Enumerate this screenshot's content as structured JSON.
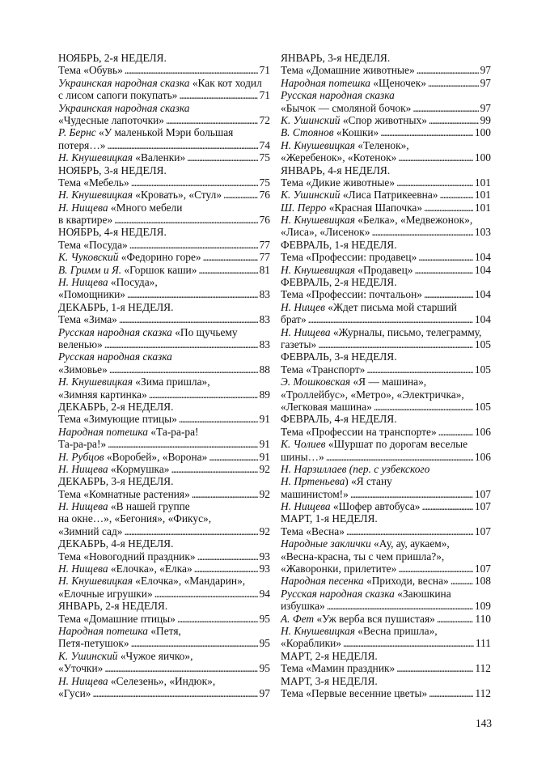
{
  "columns": [
    [
      {
        "h": "НОЯБРЬ, 2-я НЕДЕЛЯ."
      },
      {
        "lines": [
          {
            "t": "Тема «Обувь»"
          }
        ],
        "p": "71"
      },
      {
        "lines": [
          {
            "i": "Украинская народная сказка",
            "t": " «Как кот ходил"
          },
          {
            "t": "с лисом сапоги покупать»"
          }
        ],
        "p": "71"
      },
      {
        "lines": [
          {
            "i": "Украинская народная сказка"
          },
          {
            "t": "«Чудесные лапоточки»"
          }
        ],
        "p": "72"
      },
      {
        "lines": [
          {
            "i": "Р. Бернс",
            "t": " «У маленькой Мэри большая"
          },
          {
            "t": "потеря…»"
          }
        ],
        "p": "74"
      },
      {
        "lines": [
          {
            "i": "Н. Кнушевицкая",
            "t": " «Валенки»"
          }
        ],
        "p": "75"
      },
      {
        "h": "НОЯБРЬ, 3-я НЕДЕЛЯ."
      },
      {
        "lines": [
          {
            "t": "Тема «Мебель»"
          }
        ],
        "p": "75"
      },
      {
        "lines": [
          {
            "i": "Н. Кнушевицкая",
            "t": " «Кровать», «Стул»"
          }
        ],
        "p": "76"
      },
      {
        "lines": [
          {
            "i": "Н. Нищева",
            "t": " «Много мебели"
          },
          {
            "t": "в квартире»"
          }
        ],
        "p": "76"
      },
      {
        "h": "НОЯБРЬ, 4-я НЕДЕЛЯ."
      },
      {
        "lines": [
          {
            "t": "Тема «Посуда»"
          }
        ],
        "p": "77"
      },
      {
        "lines": [
          {
            "i": "К. Чуковский",
            "t": " «Федорино горе»"
          }
        ],
        "p": "77"
      },
      {
        "lines": [
          {
            "i": "В. Гримм и Я.",
            "t": " «Горшок каши»"
          }
        ],
        "p": "81"
      },
      {
        "lines": [
          {
            "i": "Н. Нищева",
            "t": " «Посуда»,"
          },
          {
            "t": "«Помощники»"
          }
        ],
        "p": "83"
      },
      {
        "h": "ДЕКАБРЬ, 1-я НЕДЕЛЯ."
      },
      {
        "lines": [
          {
            "t": "Тема «Зима»"
          }
        ],
        "p": "83"
      },
      {
        "lines": [
          {
            "i": "Русская народная сказка",
            "t": " «По щучьему"
          },
          {
            "t": "веленью»"
          }
        ],
        "p": "83"
      },
      {
        "lines": [
          {
            "i": "Русская народная сказка"
          },
          {
            "t": "«Зимовье»"
          }
        ],
        "p": "88"
      },
      {
        "lines": [
          {
            "i": "Н. Кнушевицкая",
            "t": " «Зима пришла»,"
          },
          {
            "t": "«Зимняя картинка»"
          }
        ],
        "p": "89"
      },
      {
        "h": "ДЕКАБРЬ, 2-я НЕДЕЛЯ."
      },
      {
        "lines": [
          {
            "t": "Тема «Зимующие птицы»"
          }
        ],
        "p": "91"
      },
      {
        "lines": [
          {
            "i": "Народная потешка",
            "t": " «Та-ра-ра!"
          },
          {
            "t": "Та-ра-ра!»"
          }
        ],
        "p": "91"
      },
      {
        "lines": [
          {
            "i": "Н. Рубцов",
            "t": " «Воробей», «Ворона»"
          }
        ],
        "p": "91"
      },
      {
        "lines": [
          {
            "i": "Н. Нищева",
            "t": " «Кормушка»"
          }
        ],
        "p": "92"
      },
      {
        "h": "ДЕКАБРЬ, 3-я НЕДЕЛЯ."
      },
      {
        "lines": [
          {
            "t": "Тема «Комнатные растения»"
          }
        ],
        "p": "92"
      },
      {
        "lines": [
          {
            "i": "Н. Нищева",
            "t": " «В нашей группе"
          },
          {
            "t": "на окне…», «Бегония», «Фикус»,"
          },
          {
            "t": "«Зимний сад»"
          }
        ],
        "p": "92"
      },
      {
        "h": "ДЕКАБРЬ, 4-я НЕДЕЛЯ."
      },
      {
        "lines": [
          {
            "t": "Тема «Новогодний праздник»"
          }
        ],
        "p": "93"
      },
      {
        "lines": [
          {
            "i": "Н. Нищева",
            "t": " «Елочка», «Елка»"
          }
        ],
        "p": "93"
      },
      {
        "lines": [
          {
            "i": "Н. Кнушевицкая",
            "t": " «Елочка», «Мандарин»,"
          },
          {
            "t": "«Елочные игрушки»"
          }
        ],
        "p": "94"
      },
      {
        "h": "ЯНВАРЬ, 2-я НЕДЕЛЯ."
      },
      {
        "lines": [
          {
            "t": "Тема «Домашние птицы»"
          }
        ],
        "p": "95"
      },
      {
        "lines": [
          {
            "i": "Народная потешка",
            "t": " «Петя,"
          },
          {
            "t": "Петя-петушок»"
          }
        ],
        "p": "95"
      },
      {
        "lines": [
          {
            "i": "К. Ушинский",
            "t": " «Чужое яичко»,"
          },
          {
            "t": "«Уточки»"
          }
        ],
        "p": "95"
      },
      {
        "lines": [
          {
            "i": "Н. Нищева",
            "t": " «Селезень», «Индюк»,"
          },
          {
            "t": "«Гуси»"
          }
        ],
        "p": "97"
      }
    ],
    [
      {
        "h": "ЯНВАРЬ, 3-я НЕДЕЛЯ."
      },
      {
        "lines": [
          {
            "t": "Тема «Домашние животные»"
          }
        ],
        "p": "97"
      },
      {
        "lines": [
          {
            "i": "Народная потешка",
            "t": " «Щеночек»"
          }
        ],
        "p": "97"
      },
      {
        "lines": [
          {
            "i": "Русская народная сказка"
          },
          {
            "t": "«Бычок — смоляной бочок»"
          }
        ],
        "p": "97"
      },
      {
        "lines": [
          {
            "i": "К. Ушинский",
            "t": " «Спор животных»"
          }
        ],
        "p": "99"
      },
      {
        "lines": [
          {
            "i": "В. Стоянов",
            "t": " «Кошки»"
          }
        ],
        "p": "100"
      },
      {
        "lines": [
          {
            "i": "Н. Кнушевицкая",
            "t": " «Теленок»,"
          },
          {
            "t": "«Жеребенок», «Котенок»"
          }
        ],
        "p": "100"
      },
      {
        "h": "ЯНВАРЬ, 4-я НЕДЕЛЯ."
      },
      {
        "lines": [
          {
            "t": "Тема «Дикие животные»"
          }
        ],
        "p": "101"
      },
      {
        "lines": [
          {
            "i": "К. Ушинский",
            "t": " «Лиса Патрикеевна»"
          }
        ],
        "p": "101"
      },
      {
        "lines": [
          {
            "i": "Ш. Перро",
            "t": " «Красная Шапочка»"
          }
        ],
        "p": "101"
      },
      {
        "lines": [
          {
            "i": "Н. Кнушевицкая",
            "t": " «Белка», «Медвежонок»,"
          },
          {
            "t": "«Лиса», «Лисенок»"
          }
        ],
        "p": "103"
      },
      {
        "h": "ФЕВРАЛЬ, 1-я НЕДЕЛЯ."
      },
      {
        "lines": [
          {
            "t": "Тема «Профессии: продавец»"
          }
        ],
        "p": "104"
      },
      {
        "lines": [
          {
            "i": "Н. Кнушевицкая",
            "t": " «Продавец»"
          }
        ],
        "p": "104"
      },
      {
        "h": "ФЕВРАЛЬ, 2-я НЕДЕЛЯ."
      },
      {
        "lines": [
          {
            "t": "Тема «Профессии: почтальон»"
          }
        ],
        "p": "104"
      },
      {
        "lines": [
          {
            "i": "Н. Нищев",
            "t": " «Ждет письма мой старший"
          },
          {
            "t": "брат»"
          }
        ],
        "p": "104"
      },
      {
        "lines": [
          {
            "i": "Н. Нищева",
            "t": " «Журналы, письмо, телеграмму,"
          },
          {
            "t": "газеты»"
          }
        ],
        "p": "105"
      },
      {
        "h": "ФЕВРАЛЬ, 3-я НЕДЕЛЯ."
      },
      {
        "lines": [
          {
            "t": "Тема «Транспорт»"
          }
        ],
        "p": "105"
      },
      {
        "lines": [
          {
            "i": "Э. Мошковская",
            "t": " «Я — машина»,"
          },
          {
            "t": "«Троллейбус», «Метро», «Электричка»,"
          },
          {
            "t": "«Легковая машина»"
          }
        ],
        "p": "105"
      },
      {
        "h": "ФЕВРАЛЬ, 4-я НЕДЕЛЯ."
      },
      {
        "lines": [
          {
            "t": "Тема «Профессии на транспорте»"
          }
        ],
        "p": "106"
      },
      {
        "lines": [
          {
            "i": "К. Чолиев",
            "t": " «Шуршат по дорогам веселые"
          },
          {
            "t": "шины…»"
          }
        ],
        "p": "106"
      },
      {
        "lines": [
          {
            "i": "Н. Нарзиллаев (пер. с узбекского"
          },
          {
            "i": "Н. Пртеньева",
            "t": ") «Я стану"
          },
          {
            "t": "машинистом!»"
          }
        ],
        "p": "107"
      },
      {
        "lines": [
          {
            "i": "Н. Нищева",
            "t": " «Шофер автобуса»"
          }
        ],
        "p": "107"
      },
      {
        "h": "МАРТ, 1-я НЕДЕЛЯ."
      },
      {
        "lines": [
          {
            "t": "Тема «Весна»"
          }
        ],
        "p": "107"
      },
      {
        "lines": [
          {
            "i": "Народные заклички",
            "t": " «Ау, ау, аукаем»,"
          },
          {
            "t": "«Весна-красна, ты с чем пришла?»,"
          },
          {
            "t": "«Жаворонки, прилетите»"
          }
        ],
        "p": "107"
      },
      {
        "lines": [
          {
            "i": "Народная песенка",
            "t": " «Приходи, весна»"
          }
        ],
        "p": "108"
      },
      {
        "lines": [
          {
            "i": "Русская народная сказка",
            "t": " «Заюшкина"
          },
          {
            "t": "избушка»"
          }
        ],
        "p": "109"
      },
      {
        "lines": [
          {
            "i": "А. Фет",
            "t": " «Уж верба вся пушистая»"
          }
        ],
        "p": "110"
      },
      {
        "lines": [
          {
            "i": "Н. Кнушевицкая",
            "t": " «Весна пришла»,"
          },
          {
            "t": "«Кораблики»"
          }
        ],
        "p": "111"
      },
      {
        "h": "МАРТ, 2-я НЕДЕЛЯ."
      },
      {
        "lines": [
          {
            "t": "Тема «Мамин праздник»"
          }
        ],
        "p": "112"
      },
      {
        "h": "МАРТ, 3-я НЕДЕЛЯ."
      },
      {
        "lines": [
          {
            "t": "Тема «Первые весенние цветы»"
          }
        ],
        "p": "112"
      }
    ]
  ],
  "page_number": "143"
}
